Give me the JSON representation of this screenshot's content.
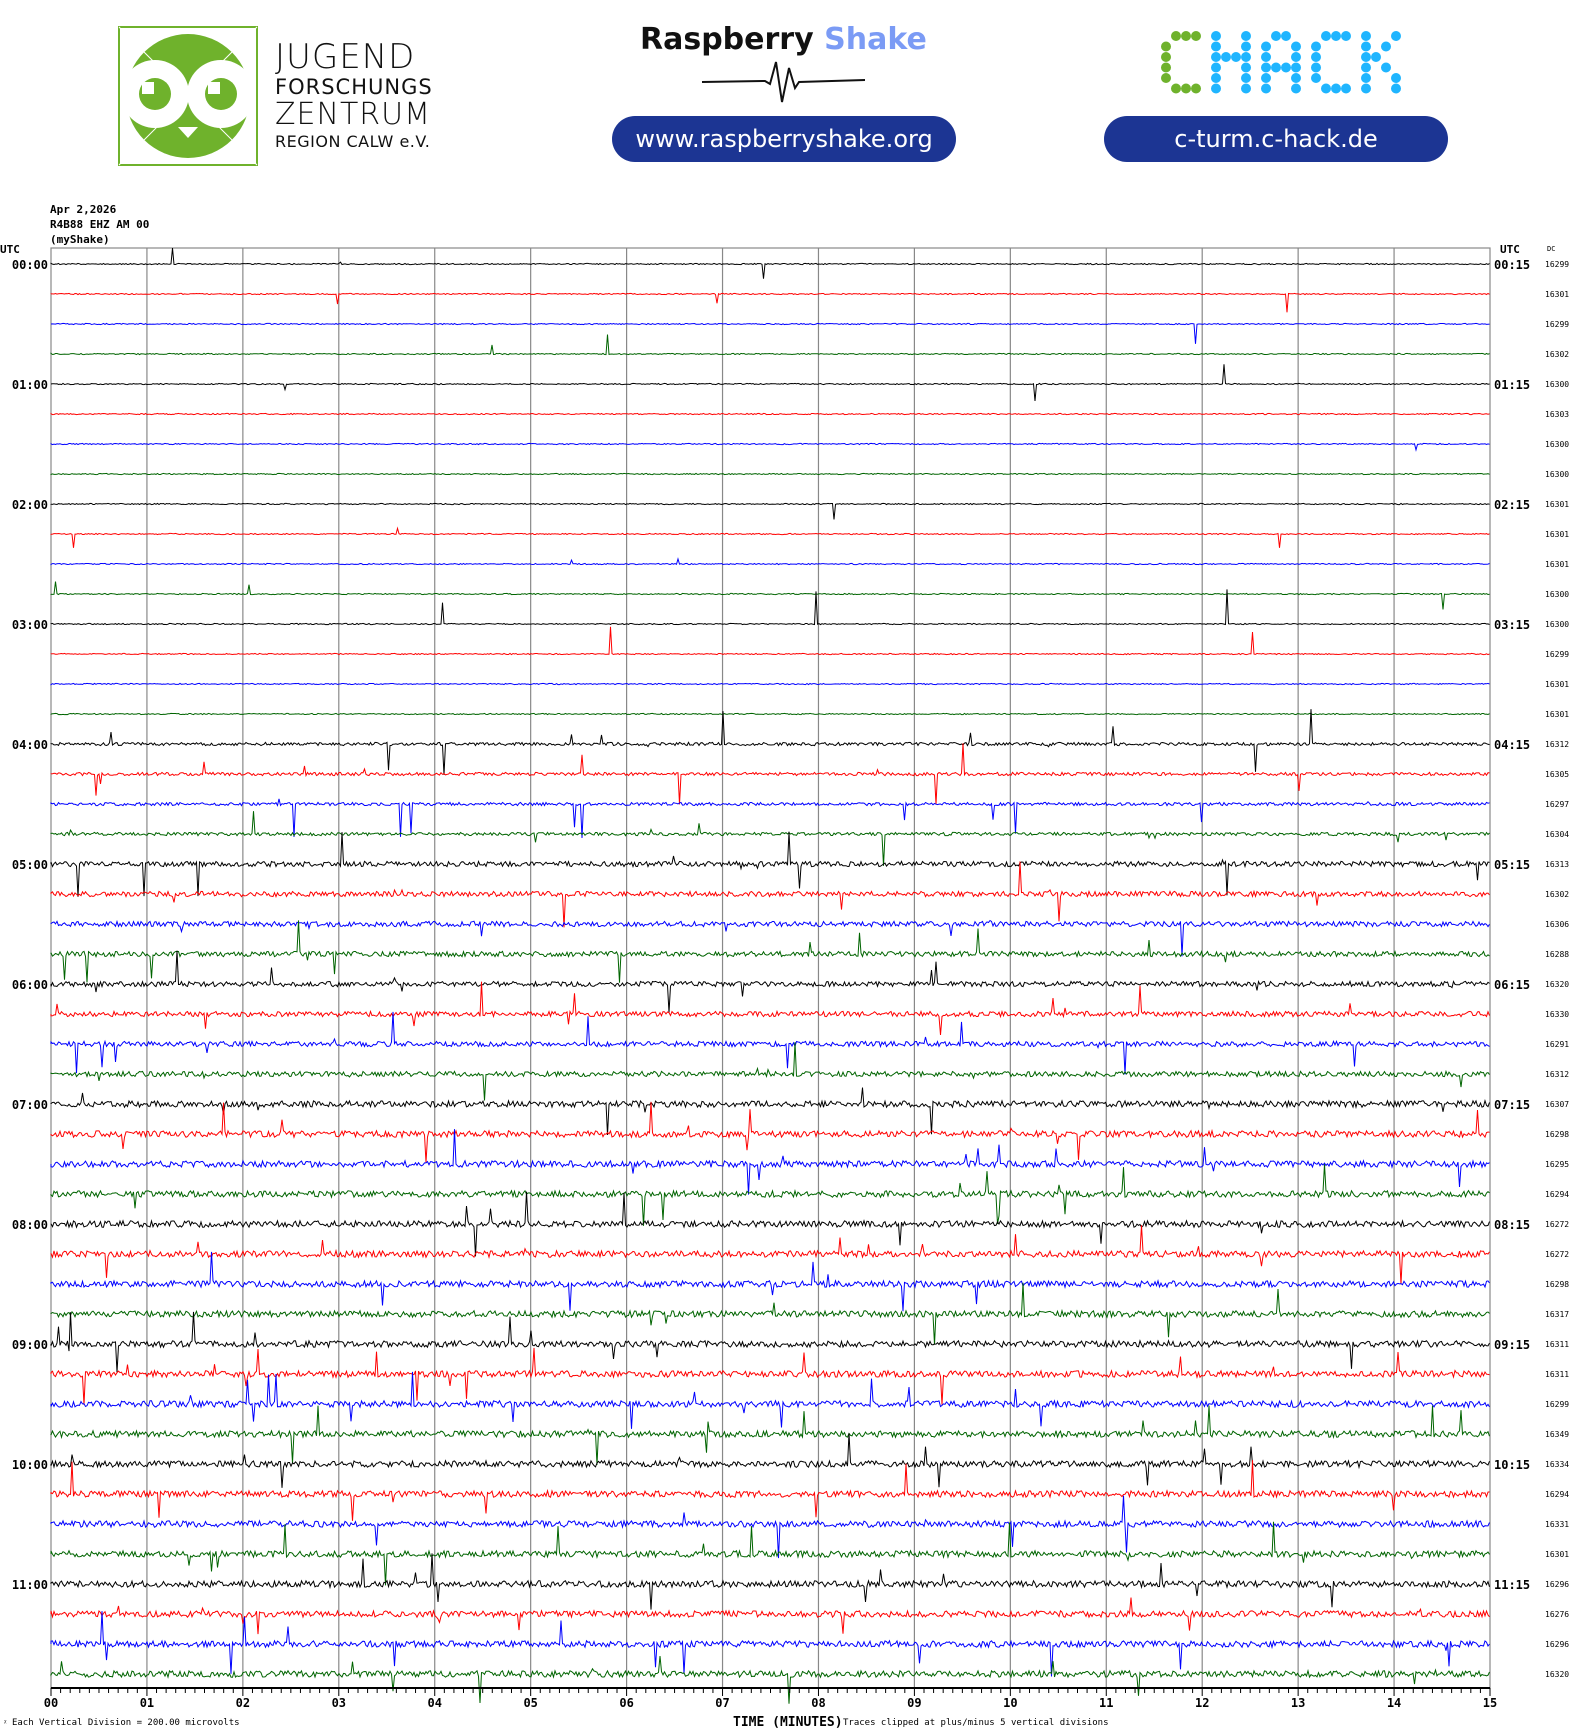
{
  "header": {
    "jfz_logo": {
      "line1": "JUGEND",
      "line2": "FORSCHUNGS",
      "line3": "ZENTRUM",
      "line4": "REGION CALW e.V."
    },
    "rs_logo": {
      "word1": "Raspberry",
      "word2": "Shake"
    },
    "rs_link": "www.raspberryshake.org",
    "chack_logo": "CHACK",
    "chack_link": "c-turm.c-hack.de"
  },
  "meta": {
    "date": "Apr 2,2026",
    "station": "R4B88 EHZ AM 00",
    "name": "(myShake)"
  },
  "plot": {
    "left_header": "UTC",
    "right_header": "UTC",
    "dc_header": "DC",
    "left_times": [
      "00:00",
      "01:00",
      "02:00",
      "03:00",
      "04:00",
      "05:00",
      "06:00",
      "07:00",
      "08:00",
      "09:00",
      "10:00",
      "11:00"
    ],
    "right_times": [
      "00:15",
      "01:15",
      "02:15",
      "03:15",
      "04:15",
      "05:15",
      "06:15",
      "07:15",
      "08:15",
      "09:15",
      "10:15",
      "11:15"
    ],
    "dc_values": [
      "16299",
      "16301",
      "16299",
      "16302",
      "16300",
      "16303",
      "16300",
      "16300",
      "16301",
      "16301",
      "16301",
      "16300",
      "16300",
      "16299",
      "16301",
      "16301",
      "16312",
      "16305",
      "16297",
      "16304",
      "16313",
      "16302",
      "16306",
      "16288",
      "16320",
      "16330",
      "16291",
      "16312",
      "16307",
      "16298",
      "16295",
      "16294",
      "16272",
      "16272",
      "16298",
      "16317",
      "16311",
      "16311",
      "16299",
      "16349",
      "16334",
      "16294",
      "16331",
      "16301",
      "16296",
      "16276",
      "16296",
      "16320"
    ],
    "trace_colors": [
      "#000000",
      "#ff0000",
      "#0000ff",
      "#006400"
    ],
    "minute_labels": [
      "00",
      "01",
      "02",
      "03",
      "04",
      "05",
      "06",
      "07",
      "08",
      "09",
      "10",
      "11",
      "12",
      "13",
      "14",
      "15"
    ],
    "x_axis_label": "TIME (MINUTES)",
    "scale_note": "Each Vertical Division =  200.00 microvolts",
    "clip_note": "Traces clipped at plus/minus 5 vertical divisions"
  }
}
